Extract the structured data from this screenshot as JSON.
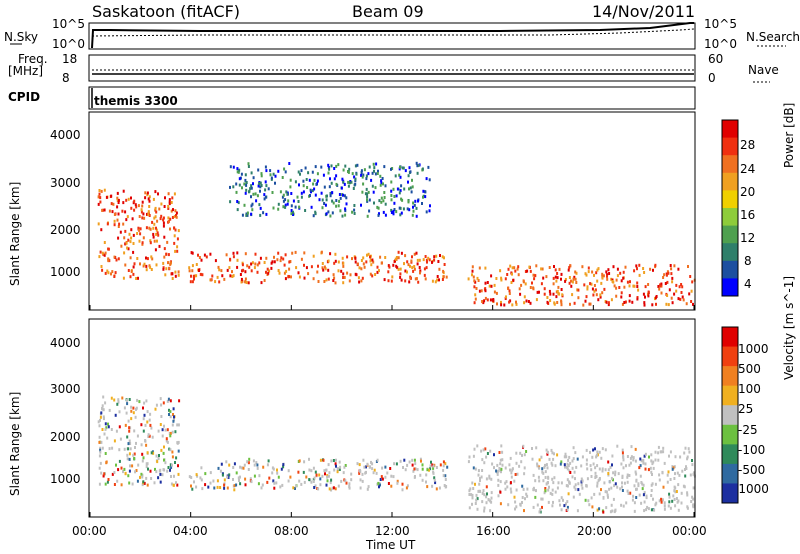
{
  "header": {
    "station": "Saskatoon (fitACF)",
    "beam": "Beam 09",
    "date": "14/Nov/2011"
  },
  "panels": {
    "nsky_label": "N.Sky",
    "nsearch_label": "N.Search",
    "nsky_ticks": [
      "10^5",
      "10^0"
    ],
    "nsearch_ticks": [
      "10^5",
      "10^0"
    ],
    "freq_label_1": "Freq.",
    "freq_label_2": "[MHz]",
    "freq_ticks": [
      "18",
      "8"
    ],
    "nave_label": "Nave",
    "nave_ticks": [
      "60",
      "0"
    ],
    "cpid_label": "CPID",
    "cpid_value": "themis 3300"
  },
  "chart_data": [
    {
      "type": "heatmap",
      "title": "",
      "xlabel": "Time UT",
      "ylabel": "Slant Range [km]",
      "ylim": [
        180,
        4600
      ],
      "y_ticks": [
        "4000",
        "3000",
        "2000",
        "1000"
      ],
      "x_ticks": [
        "00:00",
        "04:00",
        "08:00",
        "12:00",
        "16:00",
        "20:00",
        "00:00"
      ],
      "colorbar_label": "Power [dB]",
      "colorbar_ticks": [
        "28",
        "24",
        "20",
        "16",
        "12",
        "8",
        "4"
      ],
      "colors": [
        "#0000ff",
        "#1c4fa0",
        "#2f7f6a",
        "#4fa04f",
        "#8ecc3a",
        "#f0d000",
        "#f0a020",
        "#f07020",
        "#f03010",
        "#e00000"
      ],
      "scatter_bands": [
        {
          "t_start": 0.3,
          "t_end": 3.5,
          "r_min": 900,
          "r_max": 2900,
          "level": "high"
        },
        {
          "t_start": 3.9,
          "t_end": 14.2,
          "r_min": 800,
          "r_max": 1500,
          "level": "high"
        },
        {
          "t_start": 5.5,
          "t_end": 13.5,
          "r_min": 2300,
          "r_max": 3500,
          "level": "low"
        },
        {
          "t_start": 15.0,
          "t_end": 24.0,
          "r_min": 300,
          "r_max": 1200,
          "level": "high"
        }
      ]
    },
    {
      "type": "heatmap",
      "title": "",
      "xlabel": "Time UT",
      "ylabel": "Slant Range [km]",
      "ylim": [
        180,
        4600
      ],
      "y_ticks": [
        "4000",
        "3000",
        "2000",
        "1000"
      ],
      "x_ticks": [
        "00:00",
        "04:00",
        "08:00",
        "12:00",
        "16:00",
        "20:00",
        "00:00"
      ],
      "colorbar_label": "Velocity [m s^-1]",
      "colorbar_ticks": [
        "1000",
        "500",
        "100",
        "25",
        "-25",
        "-100",
        "-500",
        "-1000"
      ],
      "colors": [
        "#1c2fa0",
        "#2f6aa0",
        "#2f8a5a",
        "#6cc040",
        "#c0c0c0",
        "#f0b020",
        "#f08020",
        "#f04010",
        "#e00000"
      ],
      "scatter_bands": [
        {
          "t_start": 0.3,
          "t_end": 3.5,
          "r_min": 900,
          "r_max": 2900,
          "level": "mixed"
        },
        {
          "t_start": 3.9,
          "t_end": 14.2,
          "r_min": 800,
          "r_max": 1500,
          "level": "mixed"
        },
        {
          "t_start": 15.0,
          "t_end": 24.0,
          "r_min": 300,
          "r_max": 1800,
          "level": "ground"
        }
      ]
    }
  ]
}
